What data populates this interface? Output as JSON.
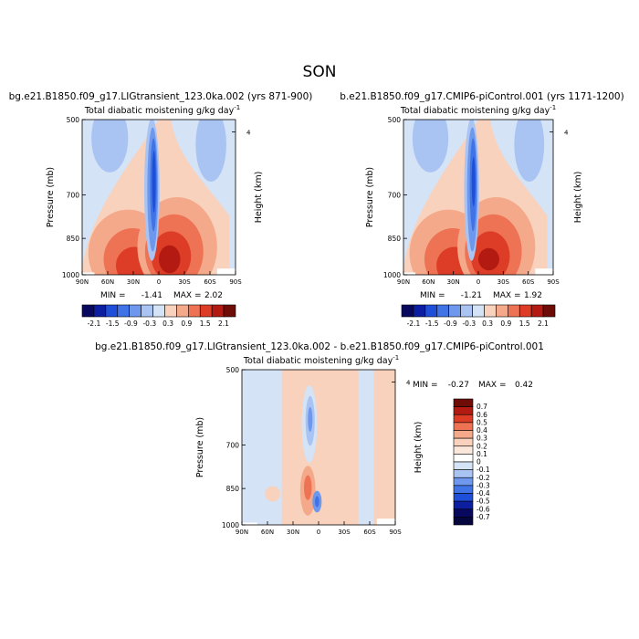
{
  "figure": {
    "title": "SON"
  },
  "colors": {
    "palette12": [
      "#08085e",
      "#0c1fa0",
      "#1f4fd8",
      "#3f73e6",
      "#6e98ee",
      "#a9c3f3",
      "#d4e3f6",
      "#f8d2bc",
      "#f4a98b",
      "#ee7254",
      "#dd3d26",
      "#b31a12",
      "#6e0d08"
    ],
    "palette_diff": [
      "#08085e",
      "#0c1fa0",
      "#1f4fd8",
      "#3f73e6",
      "#6e98ee",
      "#a9c3f3",
      "#d4e3f6",
      "#f8d2bc",
      "#f4a98b",
      "#ee7254",
      "#dd3d26",
      "#b31a12",
      "#6e0d08"
    ]
  },
  "chart_data": [
    {
      "type": "heatmap",
      "title": "bg.e21.B1850.f09_g17.LIGtransient_123.0ka.002 (yrs 871-900)",
      "subtitle": "Total diabatic moistening",
      "units": "g/kg day",
      "units_exp": "-1",
      "ylabel": "Pressure (mb)",
      "ylabel_right": "Height (km)",
      "x_ticks": [
        "90N",
        "60N",
        "30N",
        "0",
        "30S",
        "60S",
        "90S"
      ],
      "y_ticks": [
        "500",
        "700",
        "850",
        "1000"
      ],
      "right_ticks": [
        "4"
      ],
      "min_label": "MIN =",
      "min_value": "-1.41",
      "max_label": "MAX =",
      "max_value": "2.02",
      "colorbar_labels": [
        "-2.1",
        "-1.5",
        "-0.9",
        "-0.3",
        "0.3",
        "0.9",
        "1.5",
        "2.1"
      ]
    },
    {
      "type": "heatmap",
      "title": "b.e21.B1850.f09_g17.CMIP6-piControl.001 (yrs 1171-1200)",
      "subtitle": "Total diabatic moistening",
      "units": "g/kg day",
      "units_exp": "-1",
      "ylabel": "Pressure (mb)",
      "ylabel_right": "Height (km)",
      "x_ticks": [
        "90N",
        "60N",
        "30N",
        "0",
        "30S",
        "60S",
        "90S"
      ],
      "y_ticks": [
        "500",
        "700",
        "850",
        "1000"
      ],
      "right_ticks": [
        "4"
      ],
      "min_label": "MIN =",
      "min_value": "-1.21",
      "max_label": "MAX =",
      "max_value": "1.92",
      "colorbar_labels": [
        "-2.1",
        "-1.5",
        "-0.9",
        "-0.3",
        "0.3",
        "0.9",
        "1.5",
        "2.1"
      ]
    },
    {
      "type": "heatmap",
      "title": "bg.e21.B1850.f09_g17.LIGtransient_123.0ka.002 - b.e21.B1850.f09_g17.CMIP6-piControl.001",
      "subtitle": "Total diabatic moistening",
      "units": "g/kg day",
      "units_exp": "-1",
      "ylabel": "Pressure (mb)",
      "ylabel_right": "Height (km)",
      "x_ticks": [
        "90N",
        "60N",
        "30N",
        "0",
        "30S",
        "60S",
        "90S"
      ],
      "y_ticks": [
        "500",
        "700",
        "850",
        "1000"
      ],
      "right_ticks": [
        "4"
      ],
      "min_label": "MIN =",
      "min_value": "-0.27",
      "max_label": "MAX =",
      "max_value": "0.42",
      "colorbar_labels": [
        "0.7",
        "0.6",
        "0.5",
        "0.4",
        "0.3",
        "0.2",
        "0.1",
        "0",
        "-0.1",
        "-0.2",
        "-0.3",
        "-0.4",
        "-0.5",
        "-0.6",
        "-0.7"
      ]
    }
  ]
}
